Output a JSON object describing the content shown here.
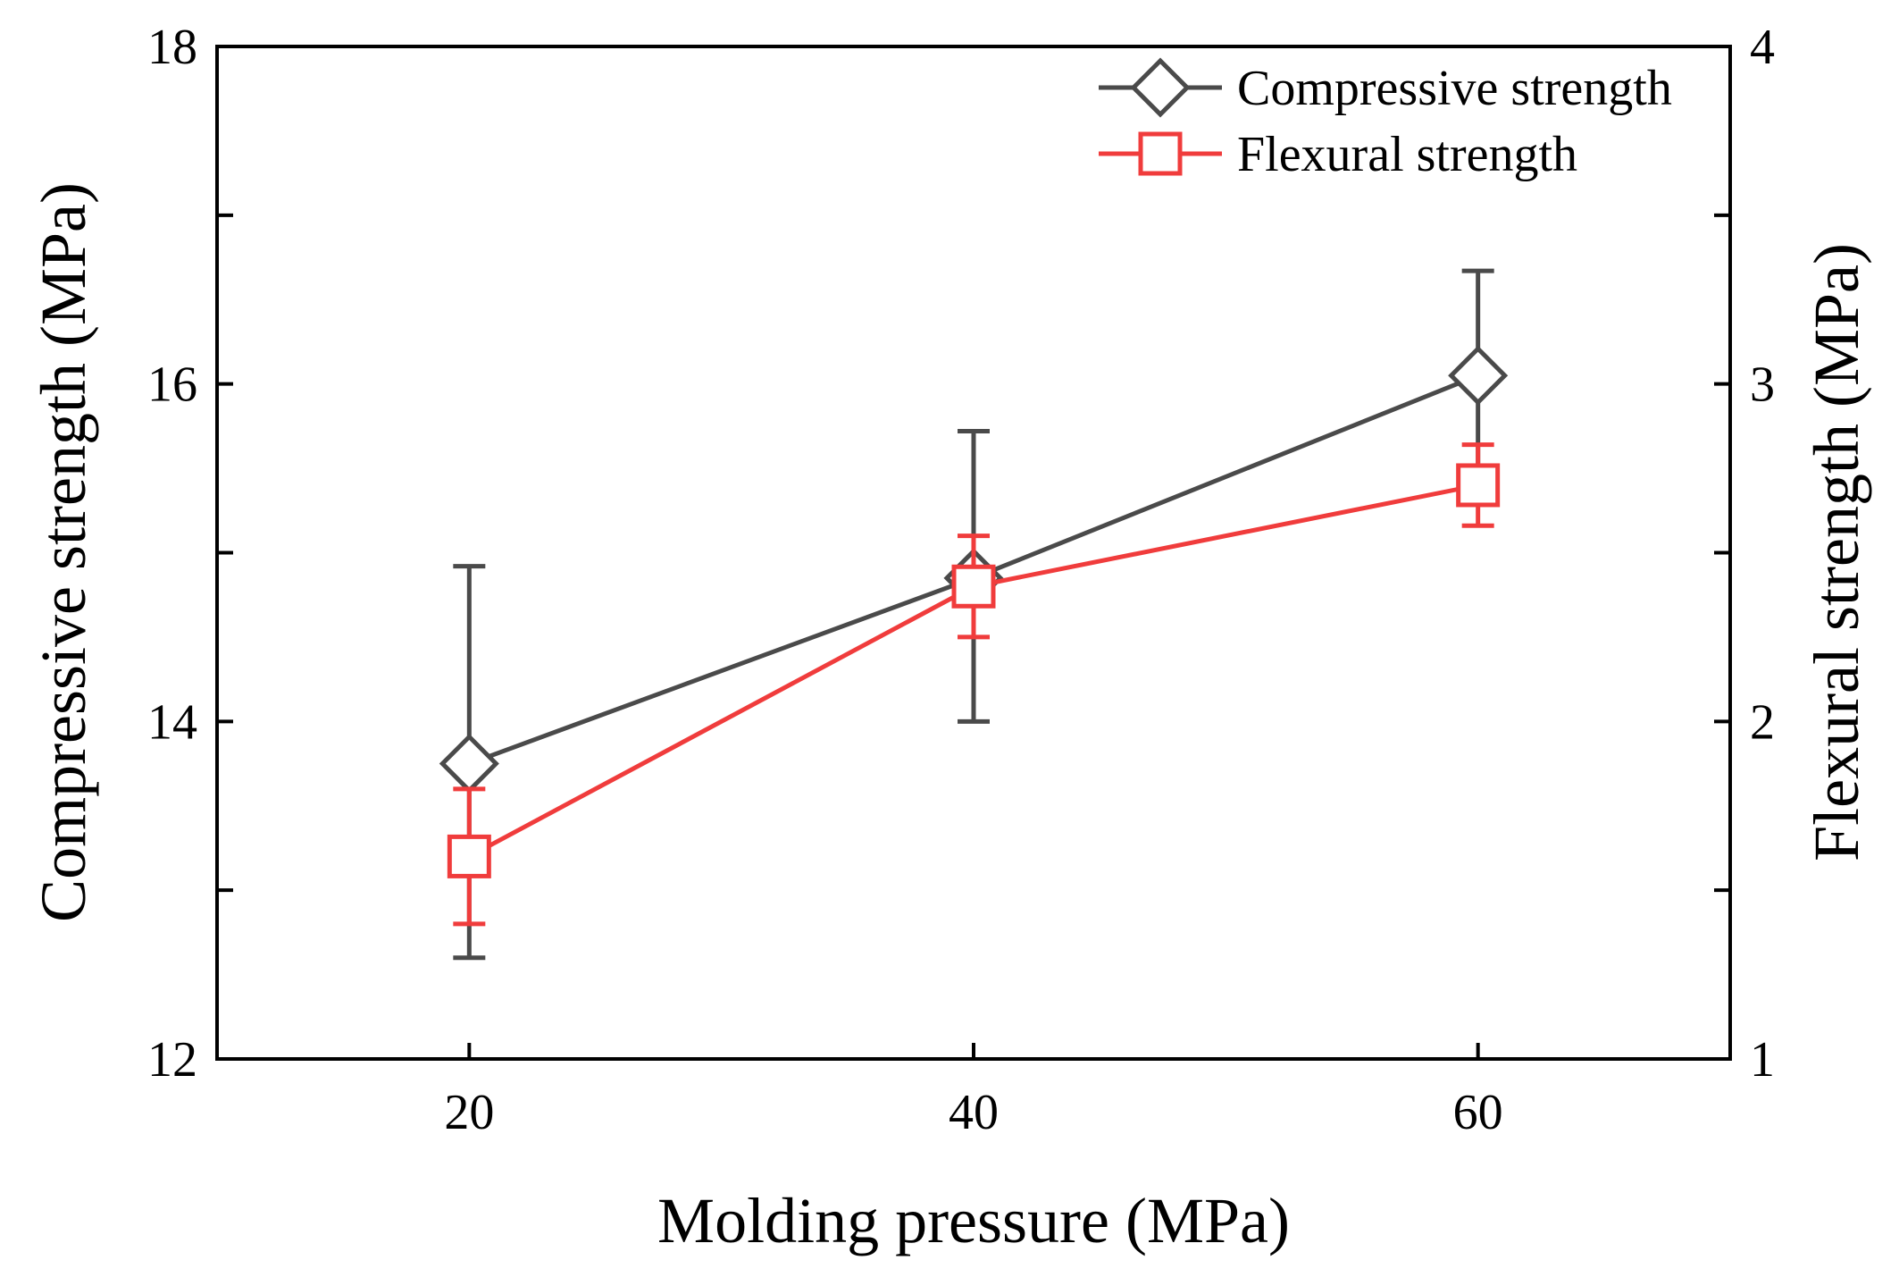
{
  "chart_data": {
    "type": "line",
    "title": "",
    "xlabel": "Molding pressure (MPa)",
    "ylabel": "Compressive strength (MPa)",
    "y2label": "Flexural strength (MPa)",
    "x": [
      20,
      40,
      60
    ],
    "xlim": [
      10,
      70
    ],
    "ylim": [
      12,
      18
    ],
    "y2lim": [
      1,
      4
    ],
    "x_ticks": [
      "20",
      "40",
      "60"
    ],
    "y_ticks": [
      "12",
      "14",
      "16",
      "18"
    ],
    "y2_ticks": [
      "1",
      "2",
      "3",
      "4"
    ],
    "legend_position": "top-right",
    "grid": false,
    "series": [
      {
        "name": "Compressive strength",
        "axis": "left",
        "marker": "diamond",
        "color": "#4a4a4a",
        "values": [
          13.75,
          14.85,
          16.05
        ],
        "err_low": [
          1.15,
          0.85,
          0.58
        ],
        "err_high": [
          1.17,
          0.87,
          0.62
        ]
      },
      {
        "name": "Flexural strength",
        "axis": "right",
        "marker": "square",
        "color": "#f03c3c",
        "values": [
          1.6,
          2.4,
          2.7
        ],
        "err_low": [
          0.2,
          0.15,
          0.12
        ],
        "err_high": [
          0.2,
          0.15,
          0.12
        ]
      }
    ]
  }
}
